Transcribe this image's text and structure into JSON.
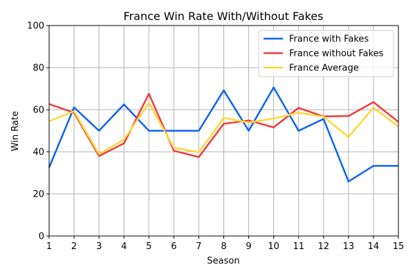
{
  "chart_data": {
    "type": "line",
    "title": "France Win Rate With/Without Fakes",
    "xlabel": "Season",
    "ylabel": "Win Rate",
    "x": [
      1,
      2,
      3,
      4,
      5,
      6,
      7,
      8,
      9,
      10,
      11,
      12,
      13,
      14,
      15
    ],
    "xlim": [
      1,
      15
    ],
    "ylim": [
      0,
      100
    ],
    "yticks": [
      0,
      20,
      40,
      60,
      80,
      100
    ],
    "grid": true,
    "legend_position": "top-right",
    "series": [
      {
        "name": "France with Fakes",
        "color": "#0b62f4",
        "values": [
          32.5,
          61.1,
          50.0,
          62.5,
          50.0,
          50.0,
          50.0,
          69.2,
          50.0,
          70.6,
          50.0,
          55.6,
          25.9,
          33.3,
          33.3
        ]
      },
      {
        "name": "France without Fakes",
        "color": "#f03a3a",
        "values": [
          62.7,
          58.6,
          38.0,
          44.0,
          67.6,
          40.5,
          37.5,
          53.3,
          54.9,
          51.6,
          60.9,
          56.8,
          57.0,
          63.6,
          54.2
        ]
      },
      {
        "name": "France Average",
        "color": "#fdd835",
        "values": [
          54.5,
          59.3,
          38.9,
          45.8,
          63.3,
          41.9,
          39.8,
          56.1,
          53.9,
          55.8,
          58.6,
          56.7,
          47.0,
          61.0,
          52.0
        ]
      }
    ]
  }
}
